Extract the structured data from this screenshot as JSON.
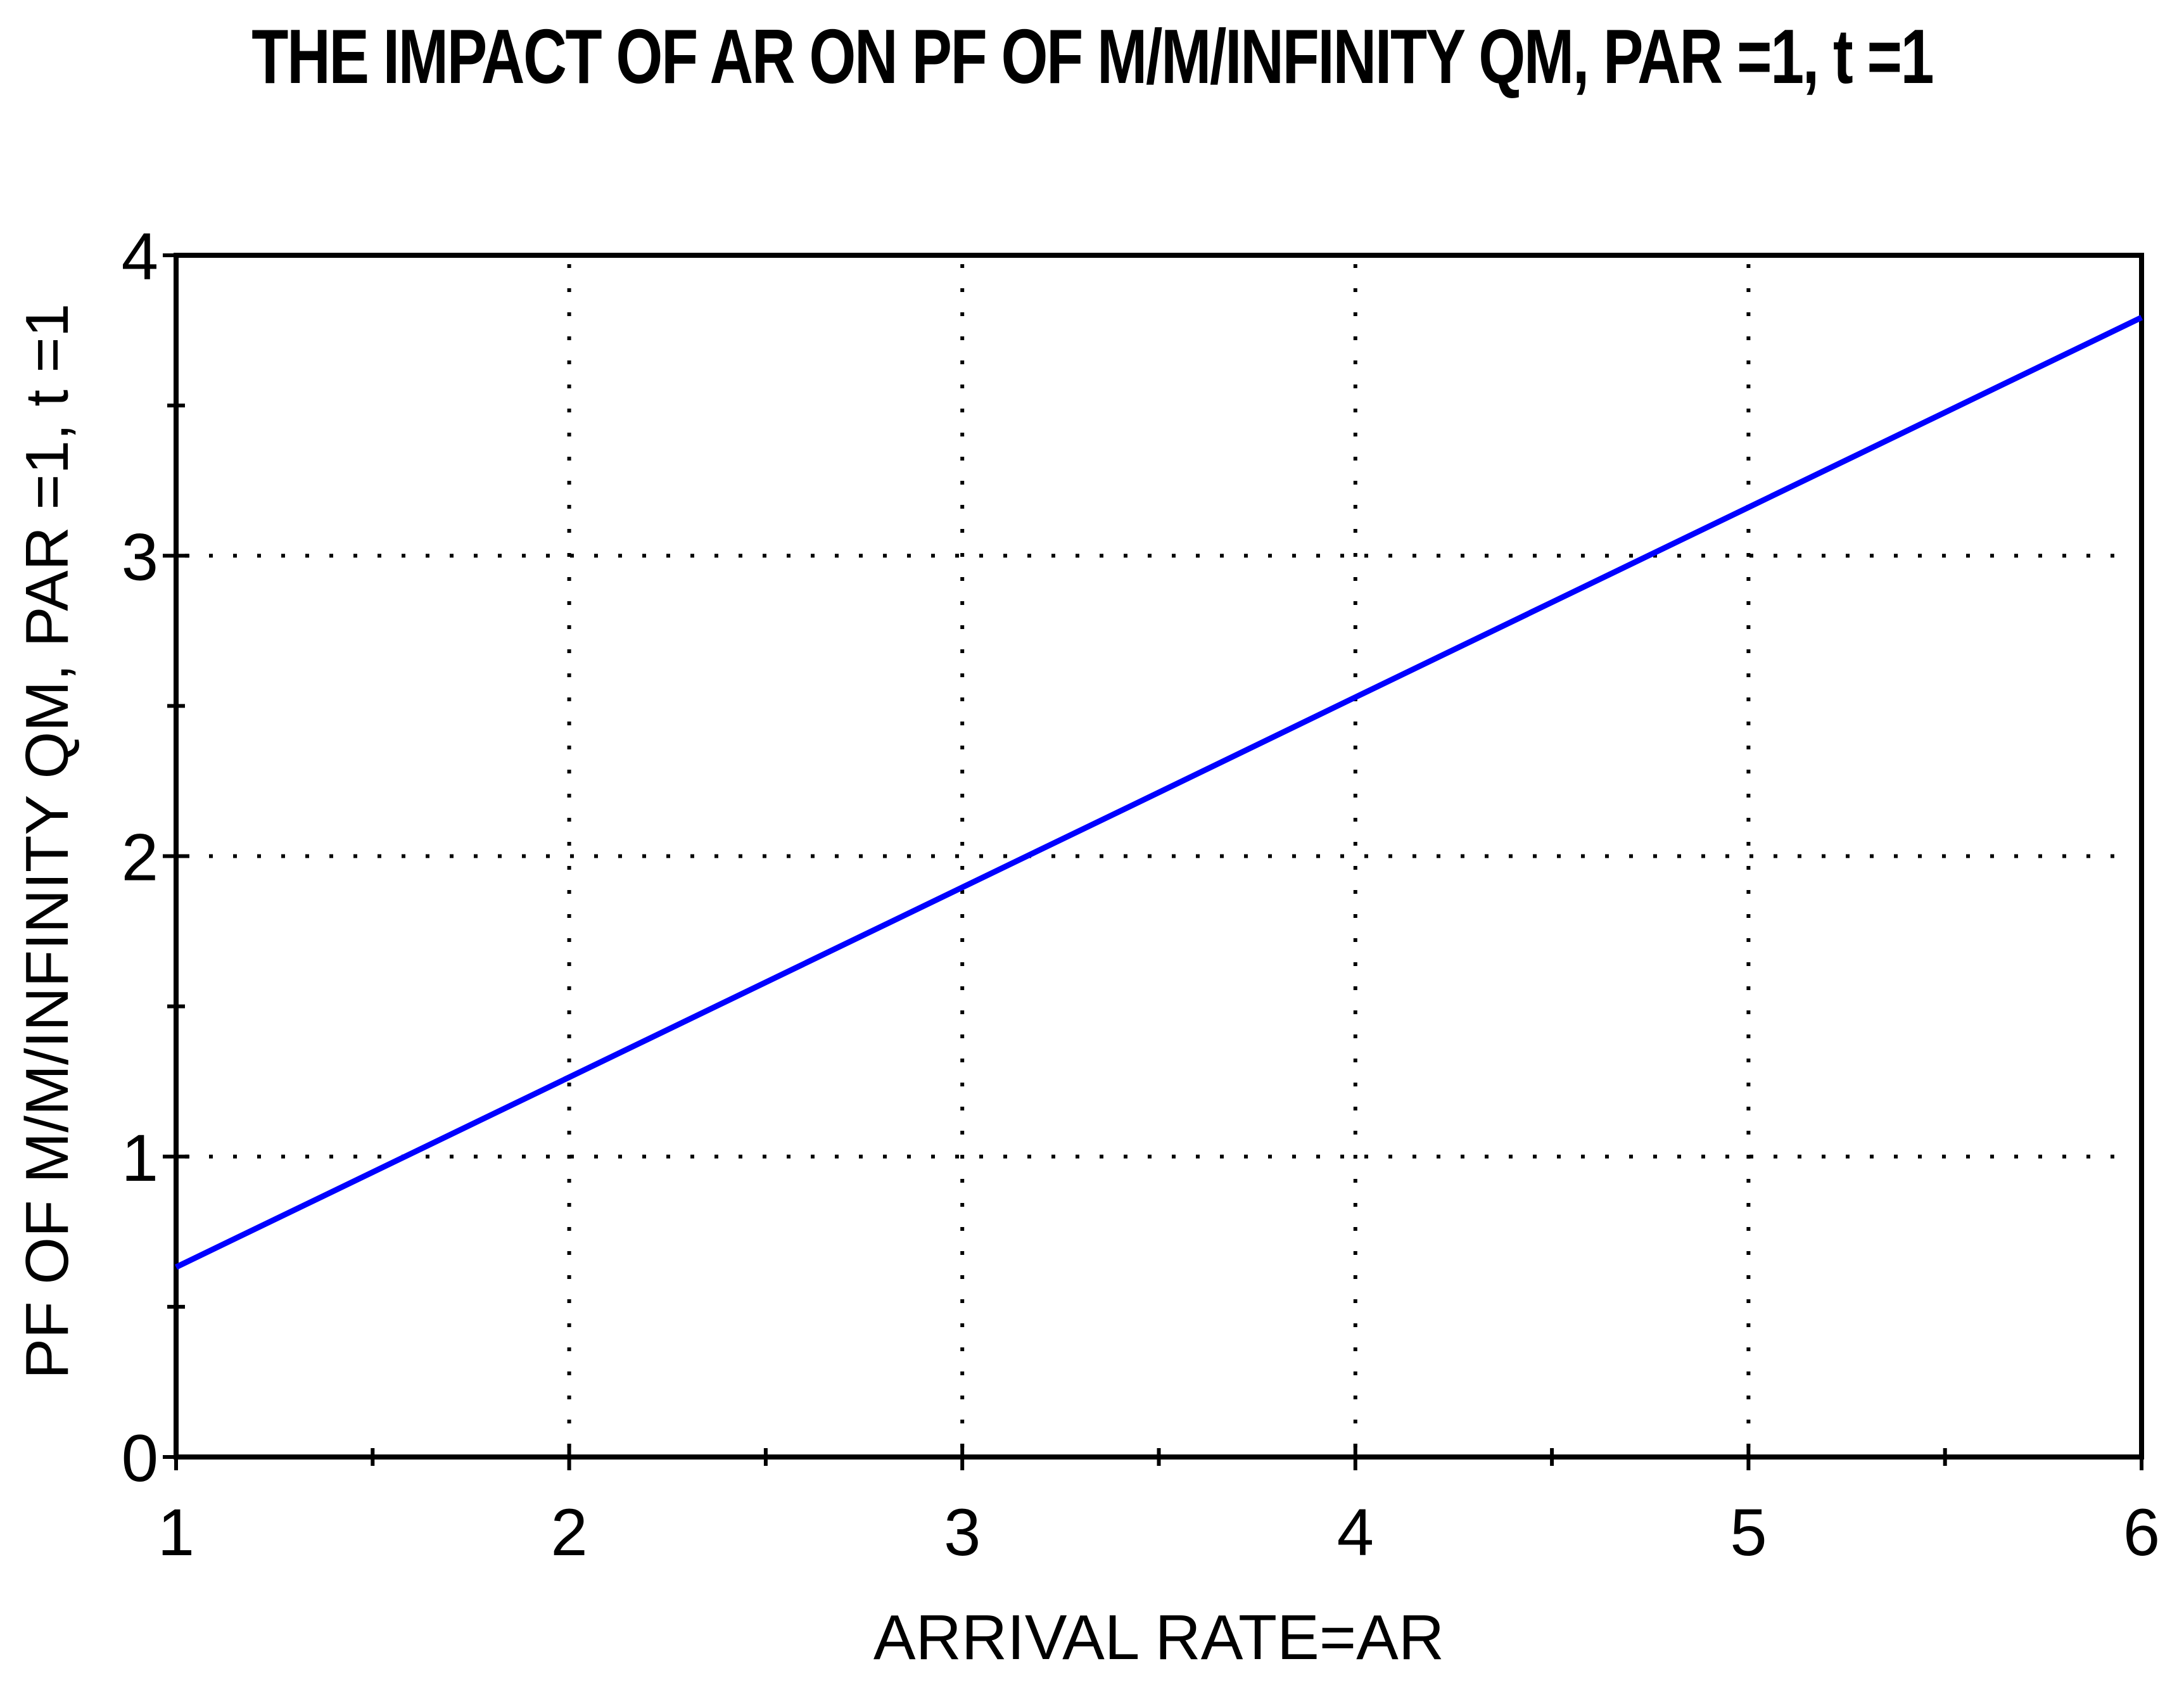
{
  "figure": {
    "background": "#FFFFFF",
    "title": "THE IMPACT OF AR ON PF OF M/M/INFINITY QM, PAR =1, t =1"
  },
  "axes": {
    "xlabel": "ARRIVAL RATE=AR",
    "ylabel": "PF OF M/M/INFINITY QM, PAR =1, t =1",
    "x_tick_labels": [
      "1",
      "2",
      "3",
      "4",
      "5",
      "6"
    ],
    "y_tick_labels": [
      "0",
      "1",
      "2",
      "3",
      "4"
    ]
  },
  "colors": {
    "line": "#0000FF",
    "axis": "#000000",
    "grid": "#000000",
    "text": "#000000",
    "background": "#FFFFFF"
  },
  "chart_data": {
    "type": "line",
    "title": "THE IMPACT OF AR ON PF OF M/M/INFINITY QM, PAR =1, t =1",
    "xlabel": "ARRIVAL RATE=AR",
    "ylabel": "PF OF M/M/INFINITY QM, PAR =1, t =1",
    "xlim": [
      1,
      6
    ],
    "ylim": [
      0,
      4
    ],
    "x_major_ticks": [
      1,
      2,
      3,
      4,
      5,
      6
    ],
    "y_major_ticks": [
      0,
      1,
      2,
      3,
      4
    ],
    "minor_tick_step": 0.5,
    "grid": "dotted gridlines at major ticks",
    "legend": "none",
    "series": [
      {
        "name": "PF OF M/M/INFINITY QM",
        "color": "#0000FF",
        "x": [
          1,
          1.5,
          2,
          2.5,
          3,
          3.5,
          4,
          4.5,
          5,
          5.5,
          6
        ],
        "y": [
          0.632,
          0.948,
          1.264,
          1.58,
          1.896,
          2.212,
          2.529,
          2.845,
          3.161,
          3.477,
          3.793
        ]
      }
    ]
  }
}
